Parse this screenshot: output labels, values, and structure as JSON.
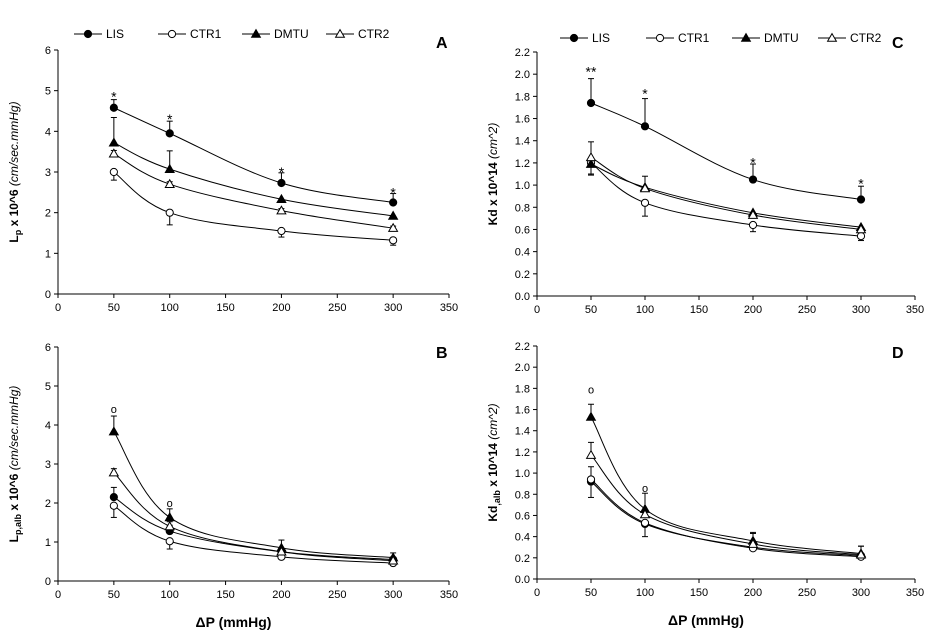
{
  "chart_data": [
    {
      "id": "A",
      "type": "line",
      "panel_label": "A",
      "ylabel": {
        "main": "L",
        "sub": "p",
        "suffix": " x 10^6 ",
        "unit": "(cm/sec.mmHg)"
      },
      "xlabel": "",
      "xlim": [
        0,
        350
      ],
      "ylim": [
        0,
        6
      ],
      "xticks": [
        0,
        50,
        100,
        150,
        200,
        250,
        300,
        350
      ],
      "yticks": [
        0,
        1,
        2,
        3,
        4,
        5,
        6
      ],
      "x": [
        50,
        100,
        200,
        300
      ],
      "series": [
        {
          "name": "LIS",
          "marker": "filled-circle",
          "values": [
            4.58,
            3.95,
            2.73,
            2.25
          ],
          "err_up": [
            0.2,
            0.3,
            0.25,
            0.22
          ]
        },
        {
          "name": "CTR1",
          "marker": "open-circle",
          "values": [
            3.0,
            2.0,
            1.55,
            1.32
          ],
          "err_up": [
            0,
            0,
            0,
            0
          ],
          "err_down": [
            0.2,
            0.3,
            0.15,
            0.12
          ]
        },
        {
          "name": "DMTU",
          "marker": "filled-triangle",
          "values": [
            3.72,
            3.07,
            2.33,
            1.92
          ],
          "err_up": [
            0.62,
            0.45,
            0,
            0
          ]
        },
        {
          "name": "CTR2",
          "marker": "open-triangle",
          "values": [
            3.45,
            2.7,
            2.05,
            1.62
          ],
          "err_up": [
            0.08,
            0.06,
            0.05,
            0.05
          ]
        }
      ],
      "annotations": [
        {
          "x": 50,
          "y": 4.95,
          "text": "*"
        },
        {
          "x": 100,
          "y": 4.4,
          "text": "*"
        },
        {
          "x": 200,
          "y": 3.1,
          "text": "*"
        },
        {
          "x": 300,
          "y": 2.6,
          "text": "*"
        }
      ]
    },
    {
      "id": "C",
      "type": "line",
      "panel_label": "C",
      "ylabel": {
        "main": "Kd",
        "sub": "",
        "suffix": " x 10^14 ",
        "unit": "(cm^2)"
      },
      "xlabel": "",
      "xlim": [
        0,
        350
      ],
      "ylim": [
        0,
        2.2
      ],
      "xticks": [
        0,
        50,
        100,
        150,
        200,
        250,
        300,
        350
      ],
      "yticks": [
        0.0,
        0.2,
        0.4,
        0.6,
        0.8,
        1.0,
        1.2,
        1.4,
        1.6,
        1.8,
        2.0,
        2.2
      ],
      "x": [
        50,
        100,
        200,
        300
      ],
      "series": [
        {
          "name": "LIS",
          "marker": "filled-circle",
          "values": [
            1.74,
            1.53,
            1.05,
            0.87
          ],
          "err_up": [
            0.22,
            0.25,
            0.14,
            0.12
          ]
        },
        {
          "name": "CTR1",
          "marker": "open-circle",
          "values": [
            1.2,
            0.84,
            0.64,
            0.54
          ],
          "err_up": [
            0,
            0,
            0,
            0
          ],
          "err_down": [
            0.1,
            0.12,
            0.06,
            0.04
          ]
        },
        {
          "name": "DMTU",
          "marker": "filled-triangle",
          "values": [
            1.19,
            0.98,
            0.75,
            0.62
          ],
          "err_up": [
            0,
            0.1,
            0,
            0
          ],
          "err_down": [
            0.1,
            0,
            0,
            0
          ]
        },
        {
          "name": "CTR2",
          "marker": "open-triangle",
          "values": [
            1.25,
            0.97,
            0.73,
            0.6
          ],
          "err_up": [
            0.14,
            0,
            0,
            0
          ]
        }
      ],
      "annotations": [
        {
          "x": 50,
          "y": 2.06,
          "text": "**"
        },
        {
          "x": 100,
          "y": 1.86,
          "text": "*"
        },
        {
          "x": 200,
          "y": 1.24,
          "text": "*"
        },
        {
          "x": 300,
          "y": 1.05,
          "text": "*"
        }
      ]
    },
    {
      "id": "B",
      "type": "line",
      "panel_label": "B",
      "ylabel": {
        "main": "L",
        "sub": "p,alb",
        "suffix": " x 10^6 ",
        "unit": "(cm/sec.mmHg)"
      },
      "xlabel": "ΔP (mmHg)",
      "xlim": [
        0,
        350
      ],
      "ylim": [
        0,
        6
      ],
      "xticks": [
        0,
        50,
        100,
        150,
        200,
        250,
        300,
        350
      ],
      "yticks": [
        0,
        1,
        2,
        3,
        4,
        5,
        6
      ],
      "x": [
        50,
        100,
        200,
        300
      ],
      "series": [
        {
          "name": "LIS",
          "marker": "filled-circle",
          "values": [
            2.15,
            1.28,
            0.75,
            0.55
          ],
          "err_up": [
            0.25,
            0.15,
            0,
            0
          ]
        },
        {
          "name": "CTR1",
          "marker": "open-circle",
          "values": [
            1.93,
            1.02,
            0.62,
            0.46
          ],
          "err_up": [
            0,
            0,
            0,
            0
          ],
          "err_down": [
            0.3,
            0.2,
            0,
            0.05
          ]
        },
        {
          "name": "DMTU",
          "marker": "filled-triangle",
          "values": [
            3.83,
            1.63,
            0.85,
            0.6
          ],
          "err_up": [
            0.4,
            0.22,
            0.2,
            0.12
          ]
        },
        {
          "name": "CTR2",
          "marker": "open-triangle",
          "values": [
            2.78,
            1.4,
            0.75,
            0.52
          ],
          "err_up": [
            0.1,
            0.12,
            0,
            0
          ]
        }
      ],
      "annotations": [
        {
          "x": 50,
          "y": 4.38,
          "text": "o"
        },
        {
          "x": 100,
          "y": 1.98,
          "text": "o"
        }
      ]
    },
    {
      "id": "D",
      "type": "line",
      "panel_label": "D",
      "ylabel": {
        "main": "Kd",
        "sub": ",alb",
        "suffix": " x 10^14 ",
        "unit": "(cm^2)"
      },
      "xlabel": "ΔP (mmHg)",
      "xlim": [
        0,
        350
      ],
      "ylim": [
        0,
        2.2
      ],
      "xticks": [
        0,
        50,
        100,
        150,
        200,
        250,
        300,
        350
      ],
      "yticks": [
        0.0,
        0.2,
        0.4,
        0.6,
        0.8,
        1.0,
        1.2,
        1.4,
        1.6,
        1.8,
        2.0,
        2.2
      ],
      "x": [
        50,
        100,
        200,
        300
      ],
      "series": [
        {
          "name": "LIS",
          "marker": "filled-circle",
          "values": [
            0.92,
            0.52,
            0.3,
            0.22
          ],
          "err_up": [
            0,
            0,
            0,
            0
          ],
          "err_down": [
            0.15,
            0.12,
            0,
            0
          ]
        },
        {
          "name": "CTR1",
          "marker": "open-circle",
          "values": [
            0.94,
            0.53,
            0.29,
            0.21
          ],
          "err_up": [
            0.12,
            0,
            0,
            0
          ]
        },
        {
          "name": "DMTU",
          "marker": "filled-triangle",
          "values": [
            1.53,
            0.66,
            0.36,
            0.24
          ],
          "err_up": [
            0.12,
            0.15,
            0.08,
            0.07
          ]
        },
        {
          "name": "CTR2",
          "marker": "open-triangle",
          "values": [
            1.17,
            0.61,
            0.33,
            0.23
          ],
          "err_up": [
            0.12,
            0,
            0.1,
            0.08
          ]
        }
      ],
      "annotations": [
        {
          "x": 50,
          "y": 1.78,
          "text": "o"
        },
        {
          "x": 100,
          "y": 0.85,
          "text": "o"
        }
      ]
    }
  ]
}
